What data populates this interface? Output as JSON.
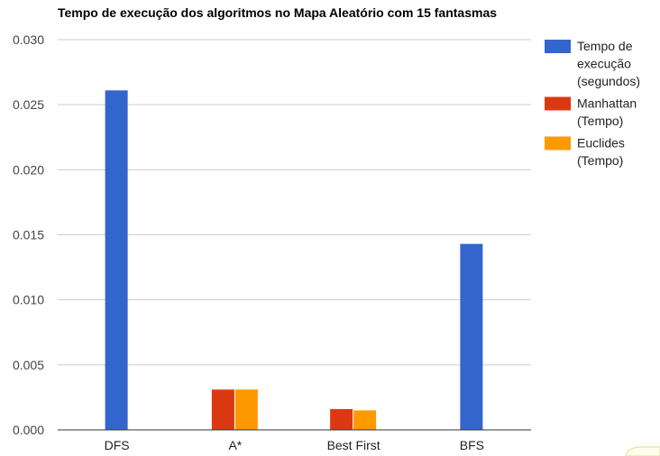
{
  "chart_data": {
    "type": "bar",
    "title": "Tempo de execução dos algoritmos no Mapa Aleatório com 15 fantasmas",
    "xlabel": "",
    "ylabel": "",
    "categories": [
      "DFS",
      "A*",
      "Best First",
      "BFS"
    ],
    "series": [
      {
        "name": "Tempo de execução (segundos)",
        "color": "#3366cc",
        "values": [
          0.0261,
          null,
          null,
          0.0143
        ]
      },
      {
        "name": "Manhattan (Tempo)",
        "color": "#dc3912",
        "values": [
          null,
          0.0031,
          0.0016,
          null
        ]
      },
      {
        "name": "Euclides (Tempo)",
        "color": "#ff9900",
        "values": [
          null,
          0.0031,
          0.0015,
          null
        ]
      }
    ],
    "ylim": [
      0,
      0.03
    ],
    "yticks": [
      "0.000",
      "0.005",
      "0.010",
      "0.015",
      "0.020",
      "0.025",
      "0.030"
    ],
    "grid": true,
    "legend_position": "right"
  }
}
